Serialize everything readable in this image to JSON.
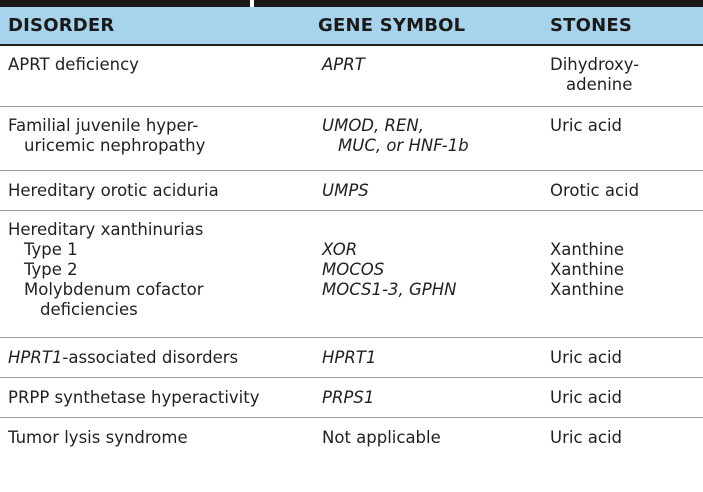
{
  "headers": {
    "disorder": "DISORDER",
    "gene_symbol": "GENE SYMBOL",
    "stones": "STONES"
  },
  "rows": [
    {
      "disorder_lines": [
        "APRT deficiency"
      ],
      "gene_lines": [
        "APRT"
      ],
      "stones_lines": [
        "Dihydroxy-",
        "adenine"
      ]
    },
    {
      "disorder_lines": [
        "Familial juvenile hyper-",
        "uricemic nephropathy"
      ],
      "gene_lines": [
        "UMOD, REN,",
        "MUC, or HNF-1b"
      ],
      "stones_lines": [
        "Uric acid"
      ]
    },
    {
      "disorder_lines": [
        "Hereditary orotic aciduria"
      ],
      "gene_lines": [
        "UMPS"
      ],
      "stones_lines": [
        "Orotic acid"
      ]
    },
    {
      "disorder_title": "Hereditary xanthinurias",
      "subrows": [
        {
          "disorder_lines": [
            "Type 1"
          ],
          "gene": "XOR",
          "stones": "Xanthine"
        },
        {
          "disorder_lines": [
            "Type 2"
          ],
          "gene": "MOCOS",
          "stones": "Xanthine"
        },
        {
          "disorder_lines": [
            "Molybdenum cofactor",
            "deficiencies"
          ],
          "gene": "MOCS1-3, GPHN",
          "stones": "Xanthine"
        }
      ]
    },
    {
      "disorder_italic_prefix": "HPRT1",
      "disorder_rest": "-associated disorders",
      "gene_lines": [
        "HPRT1"
      ],
      "stones_lines": [
        "Uric acid"
      ]
    },
    {
      "disorder_lines": [
        "PRPP synthetase hyperactivity"
      ],
      "gene_lines": [
        "PRPS1"
      ],
      "stones_lines": [
        "Uric acid"
      ]
    },
    {
      "disorder_lines": [
        "Tumor lysis syndrome"
      ],
      "gene_lines": [
        "Not applicable"
      ],
      "gene_plain": true,
      "stones_lines": [
        "Uric acid"
      ]
    }
  ]
}
